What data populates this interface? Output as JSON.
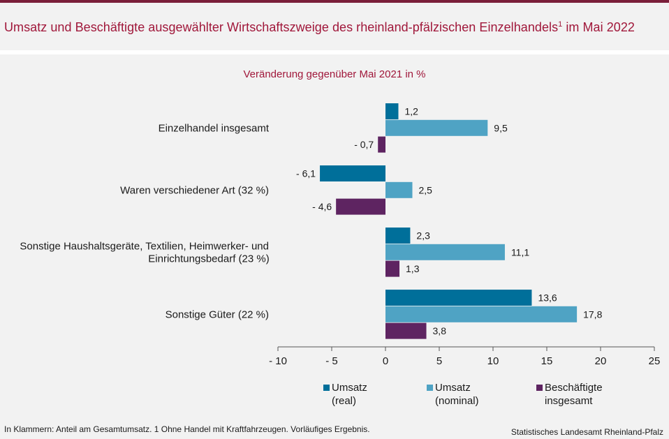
{
  "title": {
    "main": "Umsatz und Beschäftigte ausgewählter Wirtschaftszweige des rheinland-pfälzischen Einzelhandels",
    "footnote_mark": "1",
    "suffix": " im Mai 2022"
  },
  "colors": {
    "accent": "#a0173a",
    "umsatz_real": "#006f9a",
    "umsatz_nominal": "#4fa3c4",
    "beschaeftigte": "#5e2461",
    "background": "#f2f2f2"
  },
  "chart_data": {
    "type": "bar",
    "orientation": "horizontal",
    "subtitle": "Veränderung gegenüber Mai 2021 in %",
    "categories": [
      [
        "Einzelhandel insgesamt"
      ],
      [
        "Waren verschiedener Art (32 %)"
      ],
      [
        "Sonstige Haushaltsgeräte, Textilien, Heimwerker- und",
        "Einrichtungsbedarf (23 %)"
      ],
      [
        "Sonstige Güter (22 %)"
      ]
    ],
    "series": [
      {
        "name": "Umsatz (real)",
        "legend_lines": [
          "Umsatz",
          "(real)"
        ],
        "color": "#006f9a",
        "values": [
          1.2,
          -6.1,
          2.3,
          13.6
        ],
        "labels": [
          "1,2",
          "- 6,1",
          "2,3",
          "13,6"
        ]
      },
      {
        "name": "Umsatz (nominal)",
        "legend_lines": [
          "Umsatz",
          "(nominal)"
        ],
        "color": "#4fa3c4",
        "values": [
          9.5,
          2.5,
          11.1,
          17.8
        ],
        "labels": [
          "9,5",
          "2,5",
          "11,1",
          "17,8"
        ]
      },
      {
        "name": "Beschäftigte insgesamt",
        "legend_lines": [
          "Beschäftigte",
          "insgesamt"
        ],
        "color": "#5e2461",
        "values": [
          -0.7,
          -4.6,
          1.3,
          3.8
        ],
        "labels": [
          "- 0,7",
          "- 4,6",
          "1,3",
          "3,8"
        ]
      }
    ],
    "xlim": [
      -10,
      25
    ],
    "xticks": [
      -10,
      -5,
      0,
      5,
      10,
      15,
      20,
      25
    ],
    "xtick_labels": [
      "- 10",
      "- 5",
      "0",
      "5",
      "10",
      "15",
      "20",
      "25"
    ],
    "legend_position": "bottom"
  },
  "footnote": "In Klammern: Anteil am Gesamtumsatz. 1 Ohne Handel mit Kraftfahrzeugen. Vorläufiges Ergebnis.",
  "source": "Statistisches Landesamt Rheinland-Pfalz"
}
